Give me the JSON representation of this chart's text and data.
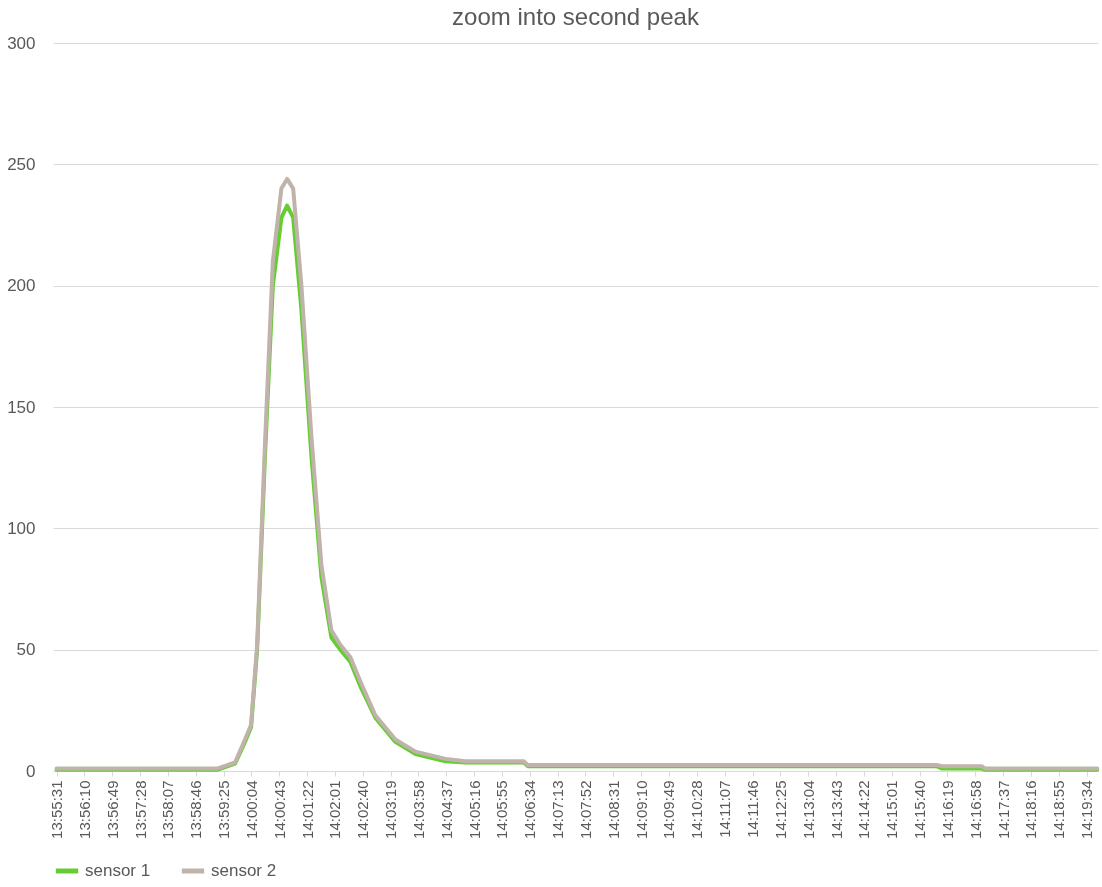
{
  "chart_data": {
    "type": "line",
    "title": "zoom into second peak",
    "x": [
      13.92528,
      13.98778,
      13.99472,
      13.99861,
      14.00097,
      14.00333,
      14.00639,
      14.00944,
      14.01278,
      14.015,
      14.01736,
      14.02056,
      14.02444,
      14.02833,
      14.03222,
      14.03569,
      14.03958,
      14.04347,
      14.04933,
      14.05714,
      14.06494,
      14.07667,
      14.08444,
      14.10708,
      14.10861,
      14.26778,
      14.26972,
      14.28528,
      14.28667,
      14.33028
    ],
    "series": [
      {
        "name": "sensor 1",
        "color": "#66cc33",
        "values": [
          0.5,
          0.5,
          3,
          12,
          18,
          50,
          130,
          200,
          228,
          233,
          228,
          190,
          130,
          80,
          55,
          50,
          45,
          35,
          22,
          12,
          7,
          4,
          3.5,
          3.5,
          2,
          2,
          1,
          1,
          0.5,
          0.5
        ]
      },
      {
        "name": "sensor 2",
        "color": "#bfb3aa",
        "values": [
          1,
          1,
          3.5,
          13,
          19,
          52,
          135,
          210,
          240,
          244,
          240,
          200,
          138,
          85,
          58,
          52,
          47,
          37,
          23,
          13,
          8,
          5,
          4,
          4,
          2.5,
          2.5,
          2,
          2,
          1,
          1
        ]
      }
    ],
    "xlim": [
      13.92389,
      14.33056
    ],
    "xticks": [
      {
        "value": 13.925278,
        "label": "13:55:31"
      },
      {
        "value": 13.936111,
        "label": "13:56:10"
      },
      {
        "value": 13.946944,
        "label": "13:56:49"
      },
      {
        "value": 13.957778,
        "label": "13:57:28"
      },
      {
        "value": 13.968611,
        "label": "13:58:07"
      },
      {
        "value": 13.979444,
        "label": "13:58:46"
      },
      {
        "value": 13.990278,
        "label": "13:59:25"
      },
      {
        "value": 14.001111,
        "label": "14:00:04"
      },
      {
        "value": 14.011944,
        "label": "14:00:43"
      },
      {
        "value": 14.022778,
        "label": "14:01:22"
      },
      {
        "value": 14.033611,
        "label": "14:02:01"
      },
      {
        "value": 14.044444,
        "label": "14:02:40"
      },
      {
        "value": 14.055278,
        "label": "14:03:19"
      },
      {
        "value": 14.066111,
        "label": "14:03:58"
      },
      {
        "value": 14.076944,
        "label": "14:04:37"
      },
      {
        "value": 14.087778,
        "label": "14:05:16"
      },
      {
        "value": 14.098611,
        "label": "14:05:55"
      },
      {
        "value": 14.109444,
        "label": "14:06:34"
      },
      {
        "value": 14.120278,
        "label": "14:07:13"
      },
      {
        "value": 14.131111,
        "label": "14:07:52"
      },
      {
        "value": 14.141944,
        "label": "14:08:31"
      },
      {
        "value": 14.152778,
        "label": "14:09:10"
      },
      {
        "value": 14.163611,
        "label": "14:09:49"
      },
      {
        "value": 14.174444,
        "label": "14:10:28"
      },
      {
        "value": 14.185278,
        "label": "14:11:07"
      },
      {
        "value": 14.196111,
        "label": "14:11:46"
      },
      {
        "value": 14.206944,
        "label": "14:12:25"
      },
      {
        "value": 14.217778,
        "label": "14:13:04"
      },
      {
        "value": 14.228611,
        "label": "14:13:43"
      },
      {
        "value": 14.239444,
        "label": "14:14:22"
      },
      {
        "value": 14.250278,
        "label": "14:15:01"
      },
      {
        "value": 14.261111,
        "label": "14:15:40"
      },
      {
        "value": 14.271944,
        "label": "14:16:19"
      },
      {
        "value": 14.282778,
        "label": "14:16:58"
      },
      {
        "value": 14.293611,
        "label": "14:17:37"
      },
      {
        "value": 14.304444,
        "label": "14:18:16"
      },
      {
        "value": 14.315278,
        "label": "14:18:55"
      },
      {
        "value": 14.326111,
        "label": "14:19:34"
      }
    ],
    "ylim": [
      0,
      300
    ],
    "yticks": [
      0,
      50,
      100,
      150,
      200,
      250,
      300
    ],
    "grid": "y",
    "legend": "bottom",
    "marker": "none",
    "line_style": "solid"
  }
}
